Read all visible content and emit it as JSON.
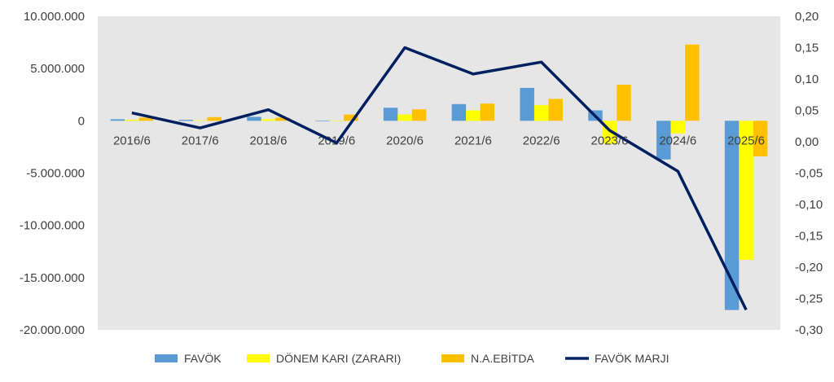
{
  "chart_data": {
    "type": "bar",
    "title": "",
    "xlabel": "",
    "ylabel": "",
    "categories": [
      "2016/6",
      "2017/6",
      "2018/6",
      "2019/6",
      "2020/6",
      "2021/6",
      "2022/6",
      "2023/6",
      "2024/6",
      "2025/6"
    ],
    "ylim": [
      -20000000,
      10000000
    ],
    "y_ticks": [
      "10.000.000",
      "5.000.000",
      "0",
      "-5.000.000",
      "-10.000.000",
      "-15.000.000",
      "-20.000.000"
    ],
    "y2lim": [
      -0.3,
      0.2
    ],
    "y2_ticks": [
      "0,20",
      "0,15",
      "0,10",
      "0,05",
      "0,00",
      "-0,05",
      "-0,10",
      "-0,15",
      "-0,20",
      "-0,25",
      "-0,30"
    ],
    "grid": false,
    "legend_position": "bottom",
    "series": [
      {
        "name": "FAVÖK",
        "type": "bar",
        "axis": "left",
        "color": "#5B9BD5",
        "values": [
          150000,
          100000,
          380000,
          -50000,
          1250000,
          1600000,
          3150000,
          1000000,
          -3700000,
          -18100000
        ]
      },
      {
        "name": "DÖNEM KARI (ZARARI)",
        "type": "bar",
        "axis": "left",
        "color": "#FFFF00",
        "values": [
          100000,
          50000,
          150000,
          -30000,
          600000,
          1000000,
          1500000,
          -2200000,
          -1200000,
          -13300000
        ]
      },
      {
        "name": "N.A.EBİTDA",
        "type": "bar",
        "axis": "left",
        "color": "#FFC000",
        "values": [
          300000,
          350000,
          300000,
          600000,
          1100000,
          1650000,
          2100000,
          3450000,
          7300000,
          -3400000
        ]
      },
      {
        "name": "FAVÖK MARJI",
        "type": "line",
        "axis": "right",
        "color": "#002060",
        "values": [
          0.046,
          0.022,
          0.051,
          -0.002,
          0.15,
          0.108,
          0.127,
          0.018,
          -0.047,
          -0.268
        ]
      }
    ]
  }
}
